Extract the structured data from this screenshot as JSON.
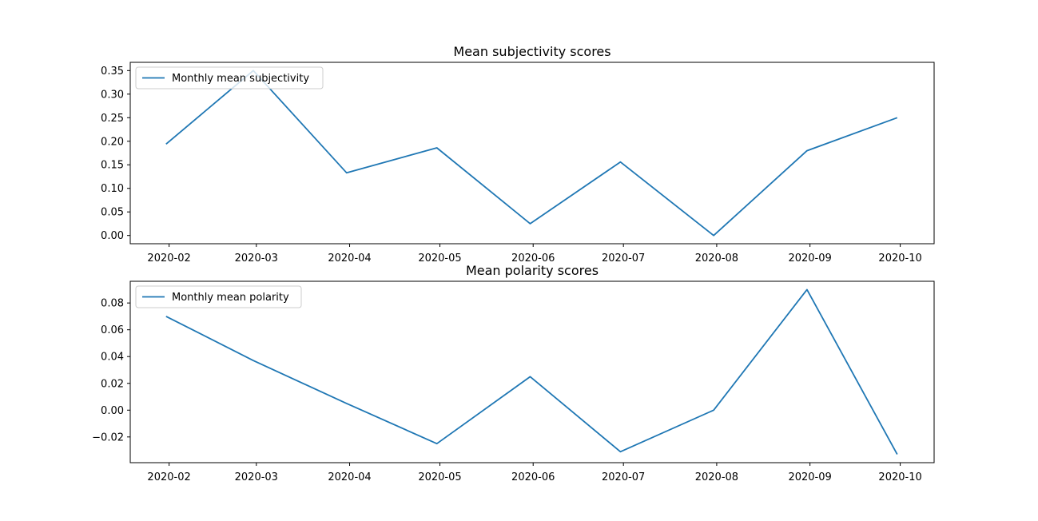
{
  "chart_data": [
    {
      "type": "line",
      "title": "Mean subjectivity scores",
      "xlabel": "",
      "ylabel": "",
      "x": [
        "2020-01-31",
        "2020-02-29",
        "2020-03-31",
        "2020-04-30",
        "2020-05-31",
        "2020-06-30",
        "2020-07-31",
        "2020-08-31",
        "2020-09-30"
      ],
      "series": [
        {
          "name": "Monthly mean subjectivity",
          "color": "#1f77b4",
          "values": [
            0.194,
            0.35,
            0.133,
            0.186,
            0.025,
            0.156,
            0.0,
            0.18,
            0.25
          ]
        }
      ],
      "xticks": [
        "2020-02",
        "2020-03",
        "2020-04",
        "2020-05",
        "2020-06",
        "2020-07",
        "2020-08",
        "2020-09",
        "2020-10"
      ],
      "yticks": [
        "0.00",
        "0.05",
        "0.10",
        "0.15",
        "0.20",
        "0.25",
        "0.30",
        "0.35"
      ],
      "ylim": [
        -0.0175,
        0.3675
      ],
      "grid": false,
      "legend": "upper left"
    },
    {
      "type": "line",
      "title": "Mean polarity scores",
      "xlabel": "",
      "ylabel": "",
      "x": [
        "2020-01-31",
        "2020-02-29",
        "2020-03-31",
        "2020-04-30",
        "2020-05-31",
        "2020-06-30",
        "2020-07-31",
        "2020-08-31",
        "2020-09-30"
      ],
      "series": [
        {
          "name": "Monthly mean polarity",
          "color": "#1f77b4",
          "values": [
            0.07,
            0.037,
            0.005,
            -0.025,
            0.025,
            -0.031,
            0.0,
            0.09,
            -0.033
          ]
        }
      ],
      "xticks": [
        "2020-02",
        "2020-03",
        "2020-04",
        "2020-05",
        "2020-06",
        "2020-07",
        "2020-08",
        "2020-09",
        "2020-10"
      ],
      "yticks": [
        "−0.02",
        "0.00",
        "0.02",
        "0.04",
        "0.06",
        "0.08"
      ],
      "ylim": [
        -0.0392,
        0.0962
      ],
      "grid": false,
      "legend": "upper left"
    }
  ]
}
